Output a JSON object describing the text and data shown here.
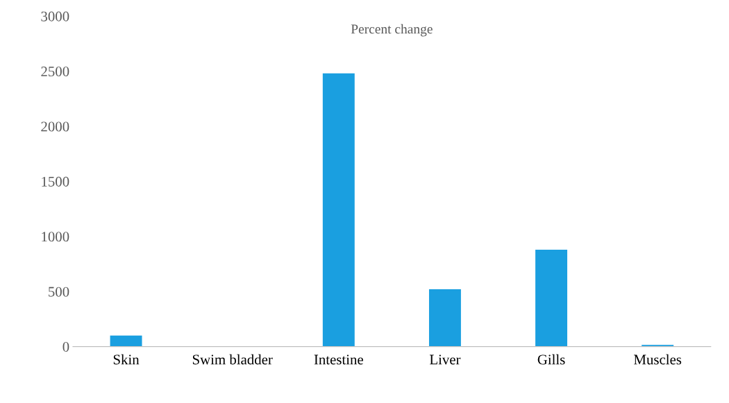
{
  "chart_data": {
    "type": "bar",
    "title": "Percent change",
    "categories": [
      "Skin",
      "Swim bladder",
      "Intestine",
      "Liver",
      "Gills",
      "Muscles"
    ],
    "values": [
      100,
      0,
      2480,
      520,
      880,
      15
    ],
    "color": "#1a9fe0",
    "ylim": [
      0,
      3000
    ],
    "yticks": [
      0,
      500,
      1000,
      1500,
      2000,
      2500,
      3000
    ],
    "grid": false,
    "legend": false
  }
}
